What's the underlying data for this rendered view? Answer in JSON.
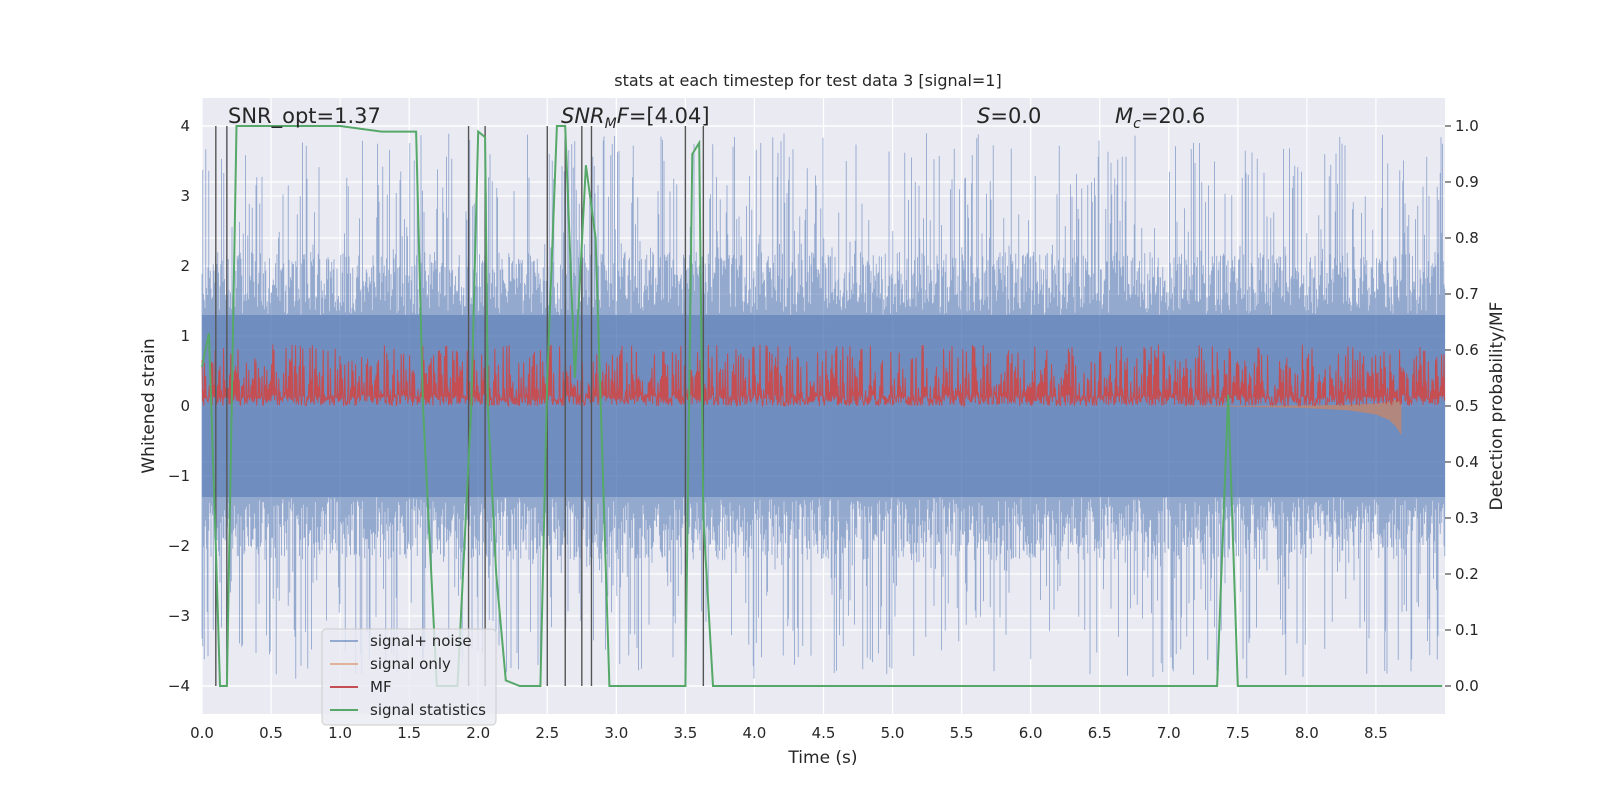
{
  "chart_data": {
    "type": "line",
    "title": "stats at each timestep for test data 3 [signal=1]",
    "xlabel": "Time (s)",
    "ylabel": "Whitened strain",
    "ylabel_right": "Detection probability/MF",
    "xlim": [
      0,
      9
    ],
    "ylim": [
      -4.4,
      4.4
    ],
    "ylim_right": [
      -0.05,
      1.05
    ],
    "xticks": [
      "0.0",
      "0.5",
      "1.0",
      "1.5",
      "2.0",
      "2.5",
      "3.0",
      "3.5",
      "4.0",
      "4.5",
      "5.0",
      "5.5",
      "6.0",
      "6.5",
      "7.0",
      "7.5",
      "8.0",
      "8.5"
    ],
    "yticks": [
      "−4",
      "−3",
      "−2",
      "−1",
      "0",
      "1",
      "2",
      "3",
      "4"
    ],
    "yticks_right": [
      "0.0",
      "0.1",
      "0.2",
      "0.3",
      "0.4",
      "0.5",
      "0.6",
      "0.7",
      "0.8",
      "0.9",
      "1.0"
    ],
    "grid": true,
    "legend_position": "lower-left",
    "annotations": {
      "snr_opt": "SNR_opt=1.37",
      "snr_mf": "=[4.04]",
      "snr_mf_base": "SNR",
      "snr_mf_sub": "M",
      "snr_mf_tail": "F",
      "s_label": "S",
      "s_value": "=0.0",
      "mc_label": "M",
      "mc_sub": "c",
      "mc_value": "=20.6"
    },
    "series": [
      {
        "name": "signal+ noise",
        "color": "#4c72b0",
        "kind": "noise",
        "amplitude_range": [
          -3.9,
          3.9
        ]
      },
      {
        "name": "signal only",
        "color": "#dd8452",
        "kind": "chirp",
        "x": [
          7.0,
          7.5,
          8.0,
          8.3,
          8.5,
          8.6,
          8.65,
          8.68
        ],
        "amplitude": [
          0.0,
          0.01,
          0.03,
          0.06,
          0.12,
          0.2,
          0.3,
          0.4
        ]
      },
      {
        "name": "MF",
        "color": "#c44e52",
        "kind": "band",
        "right_axis": true,
        "center": 0.55,
        "range": [
          0.5,
          0.61
        ]
      },
      {
        "name": "signal statistics",
        "color": "#55a868",
        "right_axis": true,
        "x": [
          0.0,
          0.05,
          0.1,
          0.13,
          0.18,
          0.25,
          0.5,
          1.0,
          1.3,
          1.55,
          1.6,
          1.7,
          1.8,
          1.85,
          1.95,
          2.0,
          2.05,
          2.07,
          2.13,
          2.2,
          2.3,
          2.45,
          2.5,
          2.57,
          2.63,
          2.7,
          2.78,
          2.85,
          2.95,
          3.0,
          3.5,
          3.55,
          3.6,
          3.63,
          3.7,
          4.0,
          5.0,
          6.0,
          7.0,
          7.35,
          7.43,
          7.5,
          8.0,
          8.98
        ],
        "y": [
          0.57,
          0.63,
          0.25,
          0.0,
          0.0,
          1.0,
          1.0,
          1.0,
          0.99,
          0.99,
          0.5,
          0.0,
          0.0,
          0.0,
          0.5,
          0.99,
          0.98,
          0.5,
          0.2,
          0.01,
          0.0,
          0.0,
          0.55,
          1.0,
          1.0,
          0.55,
          0.93,
          0.8,
          0.0,
          0.0,
          0.0,
          0.95,
          0.97,
          0.3,
          0.0,
          0.0,
          0.0,
          0.0,
          0.0,
          0.0,
          0.52,
          0.0,
          0.0,
          0.0
        ]
      }
    ],
    "vertical_lines": [
      0.1,
      0.18,
      1.93,
      2.05,
      2.5,
      2.63,
      2.75,
      2.82,
      3.5,
      3.63
    ]
  }
}
